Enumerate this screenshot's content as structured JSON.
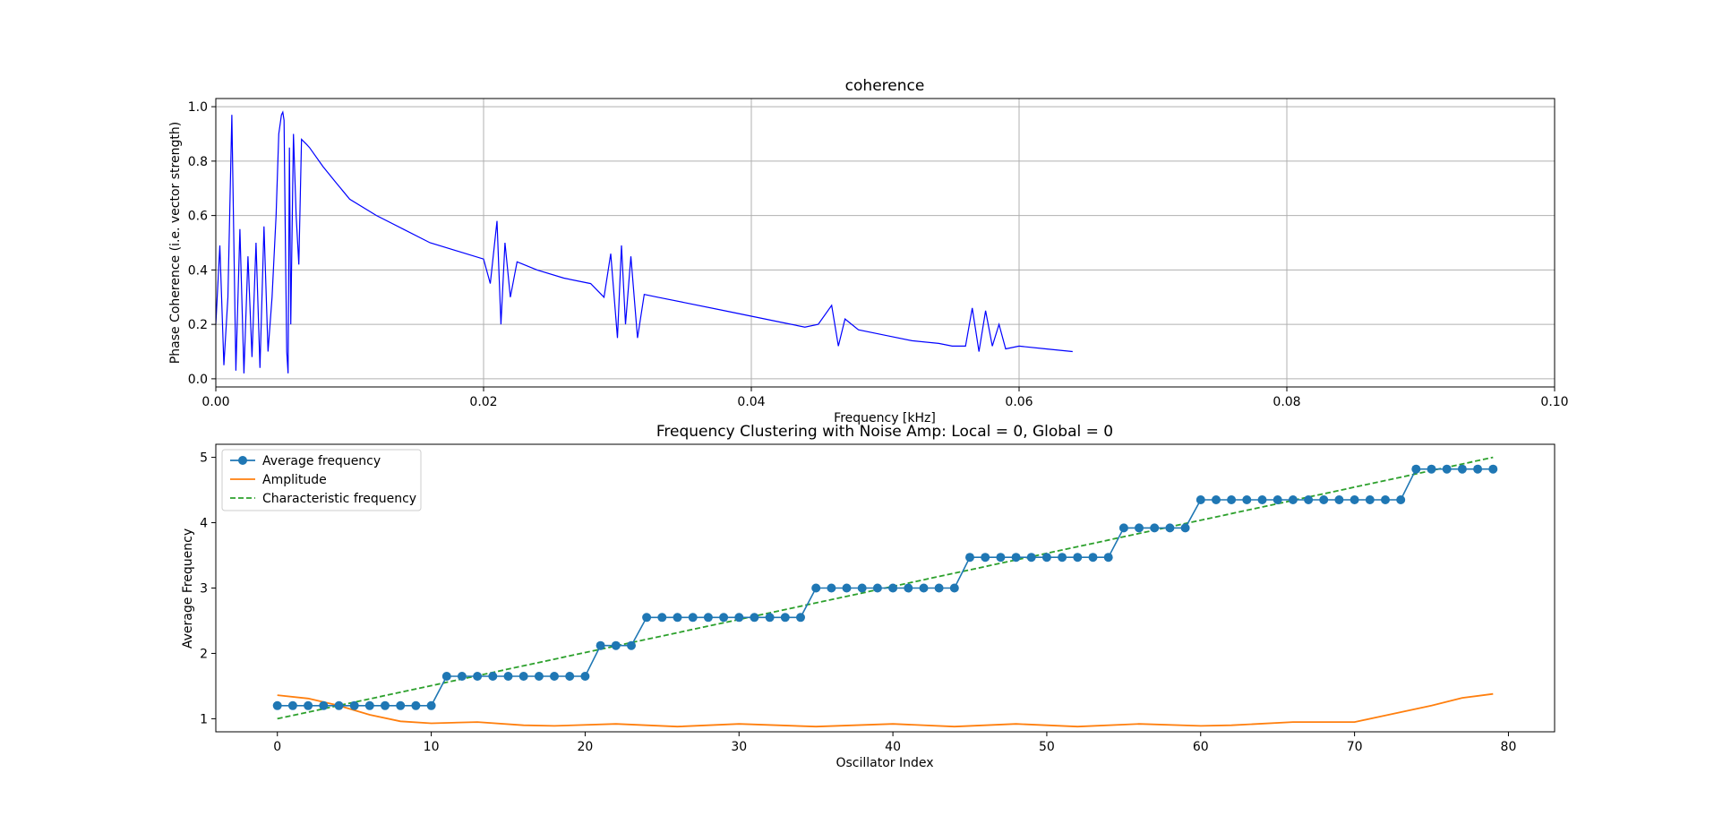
{
  "chart_data": [
    {
      "type": "line",
      "title": "coherence",
      "xlabel": "Frequency [kHz]",
      "ylabel": "Phase Coherence (i.e. vector strength)",
      "xlim": [
        0,
        0.1
      ],
      "ylim": [
        -0.03,
        1.03
      ],
      "xticks": [
        0,
        0.02,
        0.04,
        0.06,
        0.08,
        0.1
      ],
      "xtick_labels": [
        "0.00",
        "0.02",
        "0.04",
        "0.06",
        "0.08",
        "0.10"
      ],
      "yticks": [
        0,
        0.2,
        0.4,
        0.6,
        0.8,
        1.0
      ],
      "ytick_labels": [
        "0.0",
        "0.2",
        "0.4",
        "0.6",
        "0.8",
        "1.0"
      ],
      "grid": true,
      "line_color": "#0000ff",
      "series": [
        {
          "x": [
            0.0,
            0.0003,
            0.0006,
            0.0009,
            0.0012,
            0.0015,
            0.0018,
            0.0021,
            0.0024,
            0.0027,
            0.003,
            0.0033,
            0.0036,
            0.0039,
            0.0042,
            0.0045,
            0.0047,
            0.0049,
            0.005,
            0.0051,
            0.0052,
            0.0053,
            0.0054,
            0.0055,
            0.0056,
            0.0058,
            0.006,
            0.0062,
            0.0064,
            0.0066,
            0.0068,
            0.007,
            0.008,
            0.009,
            0.01,
            0.012,
            0.014,
            0.016,
            0.018,
            0.02,
            0.0205,
            0.021,
            0.0213,
            0.0216,
            0.022,
            0.0225,
            0.023,
            0.024,
            0.026,
            0.028,
            0.029,
            0.0295,
            0.03,
            0.0303,
            0.0306,
            0.031,
            0.0315,
            0.032,
            0.033,
            0.035,
            0.038,
            0.04,
            0.042,
            0.044,
            0.045,
            0.046,
            0.0465,
            0.047,
            0.048,
            0.05,
            0.052,
            0.054,
            0.055,
            0.056,
            0.0565,
            0.057,
            0.0575,
            0.058,
            0.0585,
            0.059,
            0.06,
            0.062,
            0.064
          ],
          "y": [
            0.2,
            0.49,
            0.05,
            0.3,
            0.97,
            0.03,
            0.55,
            0.02,
            0.45,
            0.08,
            0.5,
            0.04,
            0.56,
            0.1,
            0.3,
            0.6,
            0.9,
            0.97,
            0.98,
            0.95,
            0.5,
            0.1,
            0.02,
            0.85,
            0.2,
            0.9,
            0.6,
            0.42,
            0.88,
            0.87,
            0.86,
            0.85,
            0.78,
            0.72,
            0.66,
            0.6,
            0.55,
            0.5,
            0.47,
            0.44,
            0.35,
            0.58,
            0.2,
            0.5,
            0.3,
            0.43,
            0.42,
            0.4,
            0.37,
            0.35,
            0.3,
            0.46,
            0.15,
            0.49,
            0.2,
            0.45,
            0.15,
            0.31,
            0.3,
            0.28,
            0.25,
            0.23,
            0.21,
            0.19,
            0.2,
            0.27,
            0.12,
            0.22,
            0.18,
            0.16,
            0.14,
            0.13,
            0.12,
            0.12,
            0.26,
            0.1,
            0.25,
            0.12,
            0.2,
            0.11,
            0.12,
            0.11,
            0.1
          ]
        }
      ]
    },
    {
      "type": "line",
      "title": "Frequency Clustering with Noise Amp: Local = 0, Global = 0",
      "xlabel": "Oscillator Index",
      "ylabel": "Average Frequency",
      "xlim": [
        -4,
        83
      ],
      "ylim": [
        0.8,
        5.2
      ],
      "xticks": [
        0,
        10,
        20,
        30,
        40,
        50,
        60,
        70,
        80
      ],
      "xtick_labels": [
        "0",
        "10",
        "20",
        "30",
        "40",
        "50",
        "60",
        "70",
        "80"
      ],
      "yticks": [
        1,
        2,
        3,
        4,
        5
      ],
      "ytick_labels": [
        "1",
        "2",
        "3",
        "4",
        "5"
      ],
      "grid": false,
      "legend_position": "upper-left",
      "series": [
        {
          "name": "Average frequency",
          "color": "#1f77b4",
          "style": "solid-with-markers",
          "values": [
            1.2,
            1.2,
            1.2,
            1.2,
            1.2,
            1.2,
            1.2,
            1.2,
            1.2,
            1.2,
            1.2,
            1.65,
            1.65,
            1.65,
            1.65,
            1.65,
            1.65,
            1.65,
            1.65,
            1.65,
            1.65,
            2.12,
            2.12,
            2.12,
            2.55,
            2.55,
            2.55,
            2.55,
            2.55,
            2.55,
            2.55,
            2.55,
            2.55,
            2.55,
            2.55,
            3.0,
            3.0,
            3.0,
            3.0,
            3.0,
            3.0,
            3.0,
            3.0,
            3.0,
            3.0,
            3.47,
            3.47,
            3.47,
            3.47,
            3.47,
            3.47,
            3.47,
            3.47,
            3.47,
            3.47,
            3.92,
            3.92,
            3.92,
            3.92,
            3.92,
            4.35,
            4.35,
            4.35,
            4.35,
            4.35,
            4.35,
            4.35,
            4.35,
            4.35,
            4.35,
            4.35,
            4.35,
            4.35,
            4.35,
            4.82,
            4.82,
            4.82,
            4.82,
            4.82,
            4.82
          ]
        },
        {
          "name": "Amplitude",
          "color": "#ff7f0e",
          "style": "solid",
          "x": [
            0,
            2,
            4,
            6,
            8,
            10,
            13,
            16,
            18,
            22,
            26,
            30,
            35,
            40,
            44,
            48,
            52,
            56,
            60,
            62,
            66,
            70,
            72,
            75,
            77,
            79
          ],
          "y": [
            1.36,
            1.31,
            1.2,
            1.06,
            0.96,
            0.93,
            0.95,
            0.9,
            0.89,
            0.92,
            0.88,
            0.92,
            0.88,
            0.92,
            0.88,
            0.92,
            0.88,
            0.92,
            0.89,
            0.9,
            0.95,
            0.95,
            1.05,
            1.2,
            1.32,
            1.38
          ]
        },
        {
          "name": "Characteristic frequency",
          "color": "#2ca02c",
          "style": "dashed",
          "x": [
            0,
            79
          ],
          "y": [
            1.0,
            5.0
          ]
        }
      ]
    }
  ]
}
